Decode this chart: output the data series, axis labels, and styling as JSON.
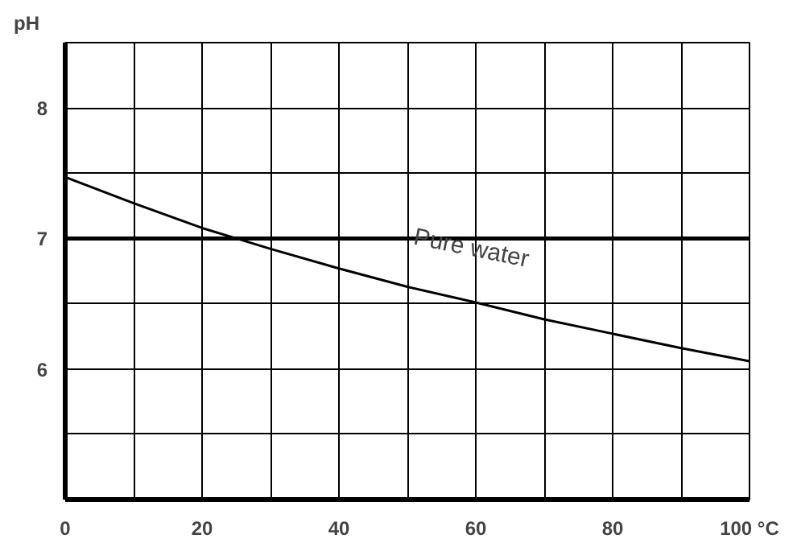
{
  "chart_data": {
    "type": "line",
    "ylabel": "pH",
    "x": [
      0,
      10,
      20,
      25,
      30,
      40,
      50,
      60,
      70,
      80,
      90,
      100
    ],
    "series": [
      {
        "color": "#000000",
        "values": [
          7.47,
          7.27,
          7.08,
          7.0,
          6.92,
          6.77,
          6.63,
          6.51,
          6.38,
          6.27,
          6.16,
          6.06
        ]
      }
    ],
    "xlim": [
      0,
      100
    ],
    "ylim": [
      5,
      8.5
    ],
    "xticks": [
      0,
      {
        "value": 10,
        "label": null
      },
      20,
      {
        "value": 30,
        "label": null
      },
      40,
      {
        "value": 50,
        "label": null
      },
      60,
      {
        "value": 70,
        "label": null
      },
      80,
      {
        "value": 90,
        "label": null
      },
      {
        "value": 100,
        "label": "100 °C"
      }
    ],
    "yticks": [
      {
        "value": 5.5,
        "label": null
      },
      6,
      {
        "value": 6.5,
        "label": null
      },
      7,
      {
        "value": 7.5,
        "label": null
      },
      8,
      {
        "value": 8.5,
        "label": null
      }
    ],
    "ref_lines": [
      {
        "axis": "y",
        "value": 7,
        "color": "#000000"
      }
    ],
    "annotations": [
      "Pure water"
    ],
    "grid": true,
    "line_style": "solid"
  }
}
